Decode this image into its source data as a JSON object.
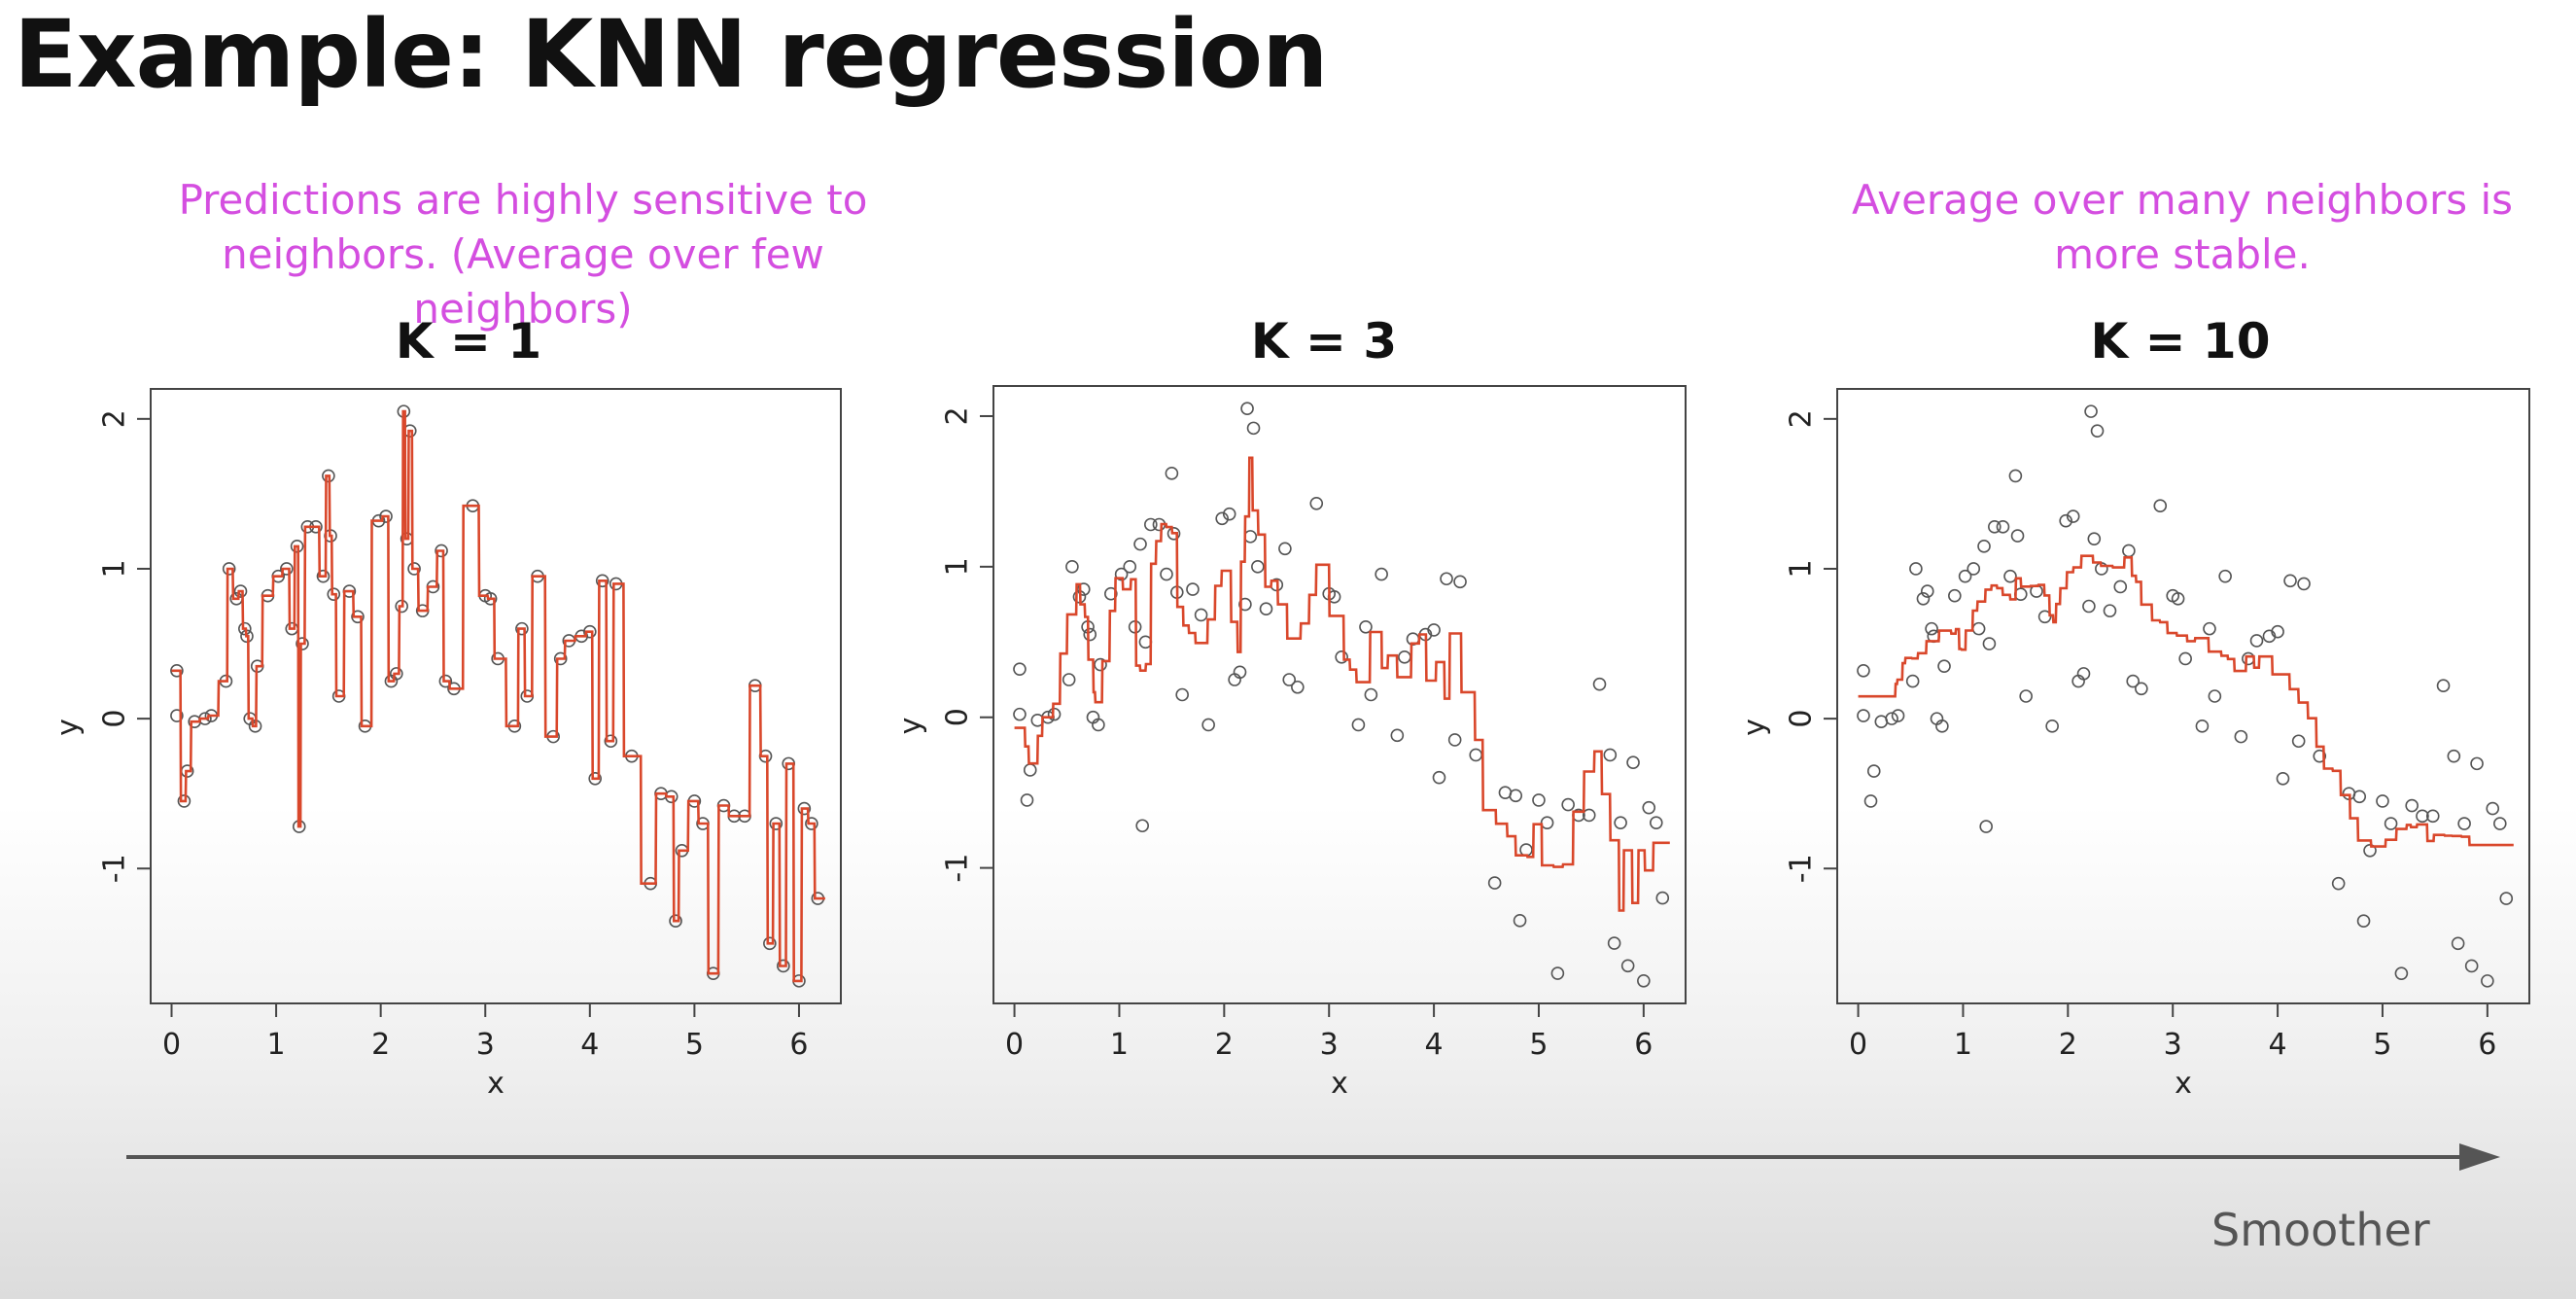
{
  "slide": {
    "title": "Example: KNN regression",
    "left_note": [
      "Predictions are highly sensitive to",
      "neighbors. (Average over few neighbors)"
    ],
    "right_note": [
      "Average over many neighbors is",
      "more stable."
    ],
    "arrow_label": "Smoother"
  },
  "colors": {
    "note_text": "#d44ee0",
    "fit_line": "#d9472b",
    "points": "#555555",
    "arrow": "#555555"
  },
  "chart_data": [
    {
      "type": "scatter",
      "title": "K = 1",
      "xlabel": "x",
      "ylabel": "y",
      "xlim": [
        -0.2,
        6.4
      ],
      "ylim": [
        -1.9,
        2.2
      ],
      "xticks": [
        "0",
        "1",
        "2",
        "3",
        "4",
        "5",
        "6"
      ],
      "yticks": [
        "-1",
        "0",
        "1",
        "2"
      ],
      "grid": false,
      "legend": "none",
      "points": {
        "x": [
          0.05,
          0.05,
          0.12,
          0.15,
          0.22,
          0.32,
          0.38,
          0.52,
          0.55,
          0.62,
          0.66,
          0.7,
          0.72,
          0.75,
          0.8,
          0.82,
          0.92,
          1.02,
          1.1,
          1.15,
          1.2,
          1.22,
          1.25,
          1.3,
          1.38,
          1.45,
          1.5,
          1.52,
          1.55,
          1.6,
          1.7,
          1.78,
          1.85,
          1.98,
          2.05,
          2.1,
          2.15,
          2.2,
          2.22,
          2.25,
          2.28,
          2.32,
          2.4,
          2.5,
          2.58,
          2.62,
          2.7,
          2.88,
          3.0,
          3.05,
          3.12,
          3.28,
          3.35,
          3.4,
          3.5,
          3.65,
          3.72,
          3.8,
          3.92,
          4.0,
          4.05,
          4.12,
          4.2,
          4.25,
          4.4,
          4.58,
          4.68,
          4.78,
          4.82,
          4.88,
          5.0,
          5.08,
          5.18,
          5.28,
          5.38,
          5.48,
          5.58,
          5.68,
          5.72,
          5.78,
          5.85,
          5.9,
          6.0,
          6.05,
          6.12,
          6.18
        ],
        "y": [
          0.32,
          0.02,
          -0.55,
          -0.35,
          -0.02,
          0.0,
          0.02,
          0.25,
          1.0,
          0.8,
          0.85,
          0.6,
          0.55,
          0.0,
          -0.05,
          0.35,
          0.82,
          0.95,
          1.0,
          0.6,
          1.15,
          -0.72,
          0.5,
          1.28,
          1.28,
          0.95,
          1.62,
          1.22,
          0.83,
          0.15,
          0.85,
          0.68,
          -0.05,
          1.32,
          1.35,
          0.25,
          0.3,
          0.75,
          2.05,
          1.2,
          1.92,
          1.0,
          0.72,
          0.88,
          1.12,
          0.25,
          0.2,
          1.42,
          0.82,
          0.8,
          0.4,
          -0.05,
          0.6,
          0.15,
          0.95,
          -0.12,
          0.4,
          0.52,
          0.55,
          0.58,
          -0.4,
          0.92,
          -0.15,
          0.9,
          -0.25,
          -1.1,
          -0.5,
          -0.52,
          -1.35,
          -0.88,
          -0.55,
          -0.7,
          -1.7,
          -0.58,
          -0.65,
          -0.65,
          0.22,
          -0.25,
          -1.5,
          -0.7,
          -1.65,
          -0.3,
          -1.75,
          -0.6,
          -0.7,
          -1.2
        ]
      }
    },
    {
      "type": "scatter",
      "title": "K = 3",
      "xlabel": "x",
      "ylabel": "y",
      "xlim": [
        -0.2,
        6.4
      ],
      "ylim": [
        -1.9,
        2.2
      ],
      "xticks": [
        "0",
        "1",
        "2",
        "3",
        "4",
        "5",
        "6"
      ],
      "yticks": [
        "-1",
        "0",
        "1",
        "2"
      ],
      "grid": false,
      "legend": "none"
    },
    {
      "type": "scatter",
      "title": "K = 10",
      "xlabel": "x",
      "ylabel": "y",
      "xlim": [
        -0.2,
        6.4
      ],
      "ylim": [
        -1.9,
        2.2
      ],
      "xticks": [
        "0",
        "1",
        "2",
        "3",
        "4",
        "5",
        "6"
      ],
      "yticks": [
        "-1",
        "0",
        "1",
        "2"
      ],
      "grid": false,
      "legend": "none"
    }
  ]
}
